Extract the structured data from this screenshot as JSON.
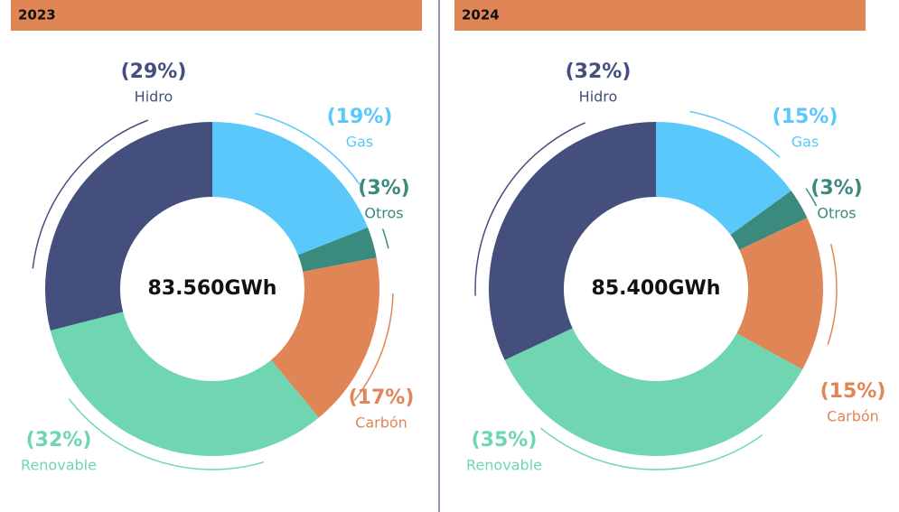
{
  "chart_data": [
    {
      "type": "donut",
      "title": "2023",
      "center_label": "83.560GWh",
      "categories": [
        "Gas",
        "Otros",
        "Carbón",
        "Renovable",
        "Hidro"
      ],
      "values": [
        19,
        3,
        17,
        32,
        29
      ],
      "value_labels": [
        "(19%)",
        "(3%)",
        "(17%)",
        "(32%)",
        "(29%)"
      ],
      "colors": [
        "#5bc8fb",
        "#3a8a7e",
        "#e08555",
        "#6fd6b1",
        "#444f7e"
      ]
    },
    {
      "type": "donut",
      "title": "2024",
      "center_label": "85.400GWh",
      "categories": [
        "Gas",
        "Otros",
        "Carbón",
        "Renovable",
        "Hidro"
      ],
      "values": [
        15,
        3,
        15,
        35,
        32
      ],
      "value_labels": [
        "(15%)",
        "(3%)",
        "(15%)",
        "(35%)",
        "(32%)"
      ],
      "colors": [
        "#5bc8fb",
        "#3a8a7e",
        "#e08555",
        "#6fd6b1",
        "#444f7e"
      ]
    }
  ]
}
